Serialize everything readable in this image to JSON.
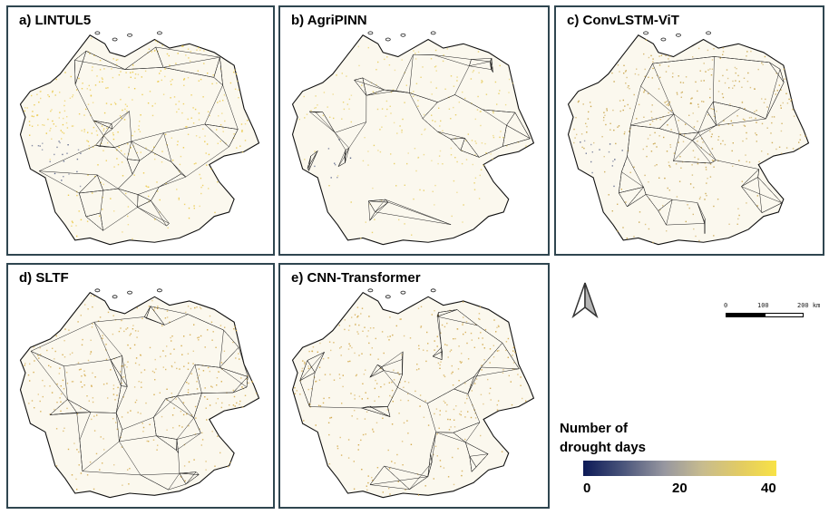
{
  "panels": [
    {
      "id": "p1",
      "label": "a) LINTUL5",
      "color": "#ebc94a",
      "density": 0.55,
      "blue_region": true
    },
    {
      "id": "p2",
      "label": "b) AgriPINN",
      "color": "#e8cf66",
      "density": 0.3,
      "blue_region": true
    },
    {
      "id": "p3",
      "label": "c) ConvLSTM-ViT",
      "color": "#c9a54c",
      "density": 0.5,
      "blue_region": true
    },
    {
      "id": "p4",
      "label": "d) SLTF",
      "color": "#d4aa4a",
      "density": 0.5,
      "blue_region": false
    },
    {
      "id": "p5",
      "label": "e) CNN-Transformer",
      "color": "#d2a84a",
      "density": 0.5,
      "blue_region": false
    }
  ],
  "scale": {
    "labels": [
      "0",
      "100",
      "200 km"
    ]
  },
  "legend": {
    "title_line1": "Number of",
    "title_line2": "drought days",
    "min_label": "0",
    "mid_label": "20",
    "max_label": "40",
    "color_low": "#0d1a57",
    "color_high": "#f8e245"
  }
}
